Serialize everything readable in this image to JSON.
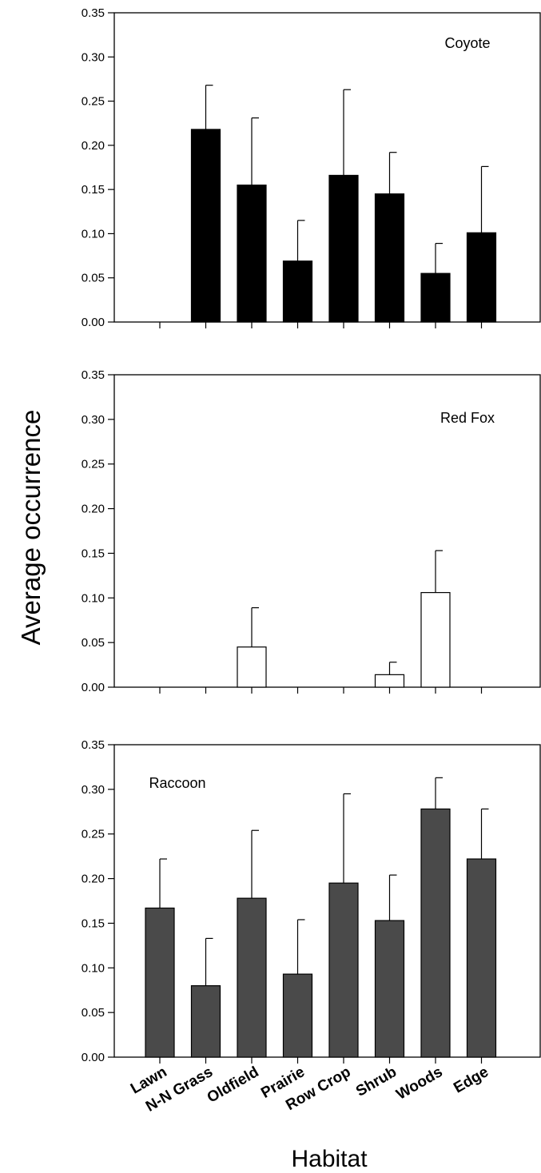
{
  "chart_data": {
    "type": "bar",
    "ylabel": "Average occurrence",
    "xlabel": "Habitat",
    "categories": [
      "Lawn",
      "N-N Grass",
      "Oldfield",
      "Prairie",
      "Row Crop",
      "Shrub",
      "Woods",
      "Edge"
    ],
    "ylim": [
      0,
      0.35
    ],
    "yticks": [
      "0.00",
      "0.05",
      "0.10",
      "0.15",
      "0.20",
      "0.25",
      "0.30",
      "0.35"
    ],
    "error_bars": "upper standard error caps",
    "panels": [
      {
        "label": "Coyote",
        "label_position": "top-right",
        "bar_color": "#000000",
        "values": [
          0,
          0.218,
          0.155,
          0.069,
          0.166,
          0.145,
          0.055,
          0.101
        ],
        "errors": [
          0,
          0.05,
          0.076,
          0.046,
          0.097,
          0.047,
          0.034,
          0.075
        ]
      },
      {
        "label": "Red Fox",
        "label_position": "top-right",
        "bar_color": "#ffffff",
        "values": [
          0,
          0,
          0.045,
          0,
          0,
          0.014,
          0.106,
          0
        ],
        "errors": [
          0,
          0,
          0.044,
          0,
          0,
          0.014,
          0.047,
          0
        ]
      },
      {
        "label": "Raccoon",
        "label_position": "top-left",
        "bar_color": "#4a4a4a",
        "values": [
          0.167,
          0.08,
          0.178,
          0.093,
          0.195,
          0.153,
          0.278,
          0.222
        ],
        "errors": [
          0.055,
          0.053,
          0.076,
          0.061,
          0.1,
          0.051,
          0.035,
          0.056
        ]
      }
    ]
  }
}
